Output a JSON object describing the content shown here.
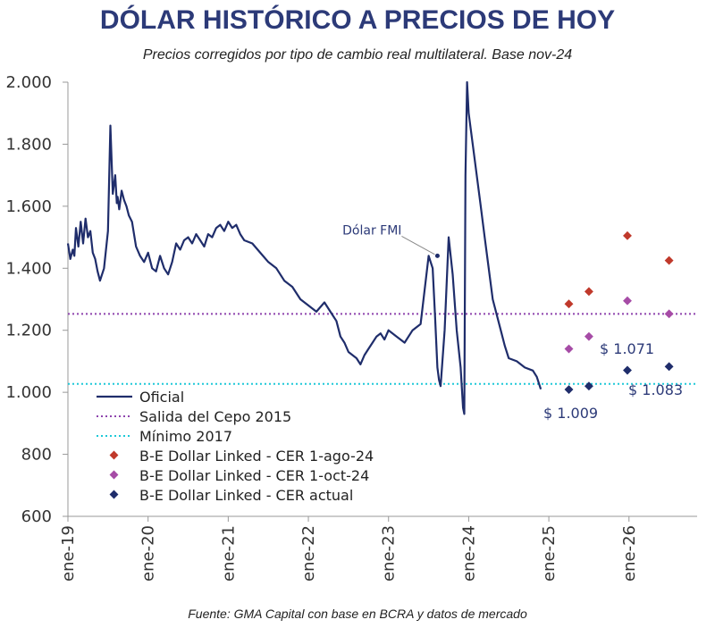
{
  "chart_data": {
    "type": "line",
    "title": "DÓLAR HISTÓRICO A PRECIOS DE HOY",
    "subtitle": "Precios corregidos por tipo de cambio real multilateral. Base nov-24",
    "source": "Fuente: GMA Capital con base en BCRA y datos de mercado",
    "ylim": [
      600,
      2000
    ],
    "yticks": [
      "600",
      "800",
      "1.000",
      "1.200",
      "1.400",
      "1.600",
      "1.800",
      "2.000"
    ],
    "ytick_values": [
      600,
      800,
      1000,
      1200,
      1400,
      1600,
      1800,
      2000
    ],
    "xlim": [
      2019.0,
      2026.85
    ],
    "xticks": [
      "ene-19",
      "ene-20",
      "ene-21",
      "ene-22",
      "ene-23",
      "ene-24",
      "ene-25",
      "ene-26"
    ],
    "xtick_values": [
      2019,
      2020,
      2021,
      2022,
      2023,
      2024,
      2025,
      2026
    ],
    "grid": false,
    "legend_position": "bottom-left",
    "series": [
      {
        "name": "Oficial",
        "kind": "line",
        "color": "#1f2d6b",
        "x": [
          2019.0,
          2019.03,
          2019.06,
          2019.08,
          2019.1,
          2019.13,
          2019.16,
          2019.19,
          2019.22,
          2019.25,
          2019.28,
          2019.31,
          2019.34,
          2019.37,
          2019.4,
          2019.45,
          2019.5,
          2019.53,
          2019.56,
          2019.59,
          2019.61,
          2019.62,
          2019.64,
          2019.67,
          2019.7,
          2019.73,
          2019.76,
          2019.8,
          2019.85,
          2019.9,
          2019.95,
          2020.0,
          2020.05,
          2020.1,
          2020.15,
          2020.2,
          2020.25,
          2020.3,
          2020.35,
          2020.4,
          2020.45,
          2020.5,
          2020.55,
          2020.6,
          2020.65,
          2020.7,
          2020.75,
          2020.8,
          2020.85,
          2020.9,
          2020.95,
          2021.0,
          2021.05,
          2021.1,
          2021.15,
          2021.2,
          2021.3,
          2021.4,
          2021.5,
          2021.6,
          2021.7,
          2021.8,
          2021.9,
          2022.0,
          2022.1,
          2022.2,
          2022.3,
          2022.35,
          2022.4,
          2022.45,
          2022.5,
          2022.55,
          2022.6,
          2022.65,
          2022.7,
          2022.75,
          2022.8,
          2022.85,
          2022.9,
          2022.95,
          2023.0,
          2023.1,
          2023.2,
          2023.3,
          2023.4,
          2023.5,
          2023.55,
          2023.58,
          2023.61,
          2023.63,
          2023.65,
          2023.7,
          2023.75,
          2023.8,
          2023.85,
          2023.9,
          2023.93,
          2023.945,
          2023.96,
          2023.98,
          2024.0,
          2024.05,
          2024.1,
          2024.15,
          2024.2,
          2024.25,
          2024.3,
          2024.35,
          2024.4,
          2024.45,
          2024.5,
          2024.6,
          2024.7,
          2024.8,
          2024.85,
          2024.9
        ],
        "y": [
          1480,
          1430,
          1460,
          1440,
          1530,
          1470,
          1550,
          1480,
          1560,
          1500,
          1520,
          1450,
          1430,
          1390,
          1360,
          1400,
          1520,
          1860,
          1640,
          1700,
          1610,
          1630,
          1590,
          1650,
          1620,
          1600,
          1570,
          1550,
          1470,
          1440,
          1420,
          1450,
          1400,
          1390,
          1440,
          1400,
          1380,
          1420,
          1480,
          1460,
          1490,
          1500,
          1480,
          1510,
          1490,
          1470,
          1510,
          1500,
          1530,
          1540,
          1520,
          1550,
          1530,
          1540,
          1510,
          1490,
          1480,
          1450,
          1420,
          1400,
          1360,
          1340,
          1300,
          1280,
          1260,
          1290,
          1250,
          1230,
          1180,
          1160,
          1130,
          1120,
          1110,
          1090,
          1120,
          1140,
          1160,
          1180,
          1190,
          1170,
          1200,
          1180,
          1160,
          1200,
          1220,
          1440,
          1400,
          1250,
          1080,
          1040,
          1020,
          1200,
          1500,
          1380,
          1200,
          1080,
          950,
          930,
          1700,
          2000,
          1900,
          1800,
          1700,
          1600,
          1500,
          1400,
          1300,
          1250,
          1200,
          1150,
          1110,
          1100,
          1080,
          1070,
          1050,
          1010
        ]
      },
      {
        "name": "Salida del Cepo 2015",
        "kind": "hline",
        "color": "#8e44ad",
        "value": 1253
      },
      {
        "name": "Mínimo 2017",
        "kind": "hline",
        "color": "#1ec8d8",
        "value": 1027
      },
      {
        "name": "B-E Dollar Linked - CER 1-ago-24",
        "kind": "scatter",
        "color": "#c0392b",
        "x": [
          2025.25,
          2025.5,
          2025.98,
          2026.5
        ],
        "y": [
          1285,
          1325,
          1505,
          1425
        ]
      },
      {
        "name": "B-E Dollar Linked - CER 1-oct-24",
        "kind": "scatter",
        "color": "#a64ca6",
        "x": [
          2025.25,
          2025.5,
          2025.98,
          2026.5
        ],
        "y": [
          1140,
          1180,
          1295,
          1253
        ]
      },
      {
        "name": "B-E Dollar Linked - CER actual",
        "kind": "scatter",
        "color": "#1f2d6b",
        "x": [
          2025.25,
          2025.5,
          2025.98,
          2026.5
        ],
        "y": [
          1009,
          1020,
          1071,
          1083
        ]
      }
    ],
    "annotations": {
      "fmi_label": "Dólar FMI",
      "fmi_point": {
        "x": 2023.61,
        "y": 1440
      },
      "label_1009": "$ 1.009",
      "label_1071": "$ 1.071",
      "label_1083": "$ 1.083"
    }
  }
}
